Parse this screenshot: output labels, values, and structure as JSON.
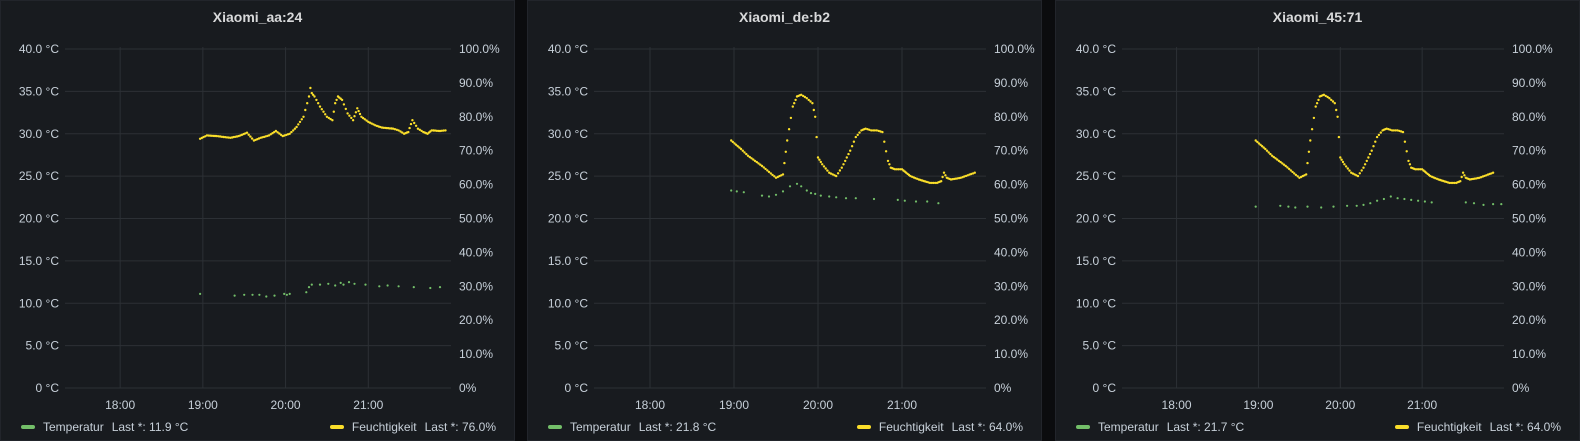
{
  "colors": {
    "temperature": "#73bf69",
    "humidity": "#fade2a",
    "grid": "#2c3035",
    "axis_text": "#c7d0d9"
  },
  "panels": [
    {
      "title": "Xiaomi_aa:24",
      "legend": [
        {
          "name": "Temperatur",
          "last": "Last *: 11.9 °C",
          "color": "#73bf69"
        },
        {
          "name": "Feuchtigkeit",
          "last": "Last *: 76.0%",
          "color": "#fade2a"
        }
      ]
    },
    {
      "title": "Xiaomi_de:b2",
      "legend": [
        {
          "name": "Temperatur",
          "last": "Last *: 21.8 °C",
          "color": "#73bf69"
        },
        {
          "name": "Feuchtigkeit",
          "last": "Last *: 64.0%",
          "color": "#fade2a"
        }
      ]
    },
    {
      "title": "Xiaomi_45:71",
      "legend": [
        {
          "name": "Temperatur",
          "last": "Last *: 21.7 °C",
          "color": "#73bf69"
        },
        {
          "name": "Feuchtigkeit",
          "last": "Last *: 64.0%",
          "color": "#fade2a"
        }
      ]
    }
  ],
  "chart_data": [
    {
      "type": "scatter",
      "title": "Xiaomi_aa:24",
      "x_ticks": [
        "18:00",
        "19:00",
        "20:00",
        "21:00"
      ],
      "y_left": {
        "ticks": [
          "0 °C",
          "5.0 °C",
          "10.0 °C",
          "15.0 °C",
          "20.0 °C",
          "25.0 °C",
          "30.0 °C",
          "35.0 °C",
          "40.0 °C"
        ],
        "range": [
          0,
          40
        ],
        "unit": "°C"
      },
      "y_right": {
        "ticks": [
          "0%",
          "10.0%",
          "20.0%",
          "30.0%",
          "40.0%",
          "50.0%",
          "60.0%",
          "70.0%",
          "80.0%",
          "90.0%",
          "100.0%"
        ],
        "range": [
          0,
          100
        ],
        "unit": "%"
      },
      "x_range": [
        "17:20",
        "22:00"
      ],
      "grid": true,
      "legend_position": "bottom",
      "series": [
        {
          "name": "Temperatur",
          "axis": "left",
          "x": [
            "18:58",
            "19:23",
            "19:30",
            "19:36",
            "19:41",
            "19:46",
            "19:52",
            "19:59",
            "20:01",
            "20:03",
            "20:15",
            "20:17",
            "20:19",
            "20:25",
            "20:31",
            "20:36",
            "20:40",
            "20:42",
            "20:46",
            "20:50",
            "20:58",
            "21:08",
            "21:14",
            "21:22",
            "21:33",
            "21:45",
            "21:52"
          ],
          "y": [
            11.1,
            10.9,
            11.0,
            11.0,
            11.0,
            10.8,
            10.9,
            11.1,
            11.0,
            11.1,
            11.3,
            11.9,
            12.2,
            12.2,
            12.3,
            12.1,
            12.4,
            12.2,
            12.5,
            12.3,
            12.2,
            12.0,
            12.1,
            12.0,
            11.9,
            11.8,
            11.9
          ]
        },
        {
          "name": "Feuchtigkeit",
          "axis": "right",
          "x": [
            "18:58",
            "19:03",
            "19:10",
            "19:20",
            "19:26",
            "19:32",
            "19:37",
            "19:42",
            "19:48",
            "19:53",
            "19:58",
            "20:03",
            "20:08",
            "20:13",
            "20:17",
            "20:18",
            "20:19",
            "20:21",
            "20:25",
            "20:30",
            "20:34",
            "20:36",
            "20:38",
            "20:41",
            "20:45",
            "20:49",
            "20:52",
            "20:55",
            "21:00",
            "21:05",
            "21:10",
            "21:18",
            "21:22",
            "21:26",
            "21:29",
            "21:32",
            "21:36",
            "21:40",
            "21:43",
            "21:46",
            "21:52",
            "21:56"
          ],
          "y": [
            73.5,
            74.5,
            74.3,
            73.8,
            74.3,
            75.3,
            73.0,
            73.8,
            74.5,
            75.8,
            74.3,
            75.0,
            77.0,
            80.0,
            86.0,
            88.5,
            87.0,
            86.0,
            83.0,
            80.0,
            79.0,
            84.0,
            86.0,
            85.0,
            81.0,
            79.0,
            82.5,
            80.0,
            78.5,
            77.5,
            76.8,
            76.5,
            76.0,
            75.0,
            75.5,
            79.0,
            76.5,
            75.5,
            75.0,
            76.0,
            75.8,
            76.0
          ]
        }
      ]
    },
    {
      "type": "scatter",
      "title": "Xiaomi_de:b2",
      "x_ticks": [
        "18:00",
        "19:00",
        "20:00",
        "21:00"
      ],
      "y_left": {
        "ticks": [
          "0 °C",
          "5.0 °C",
          "10.0 °C",
          "15.0 °C",
          "20.0 °C",
          "25.0 °C",
          "30.0 °C",
          "35.0 °C",
          "40.0 °C"
        ],
        "range": [
          0,
          40
        ],
        "unit": "°C"
      },
      "y_right": {
        "ticks": [
          "0%",
          "10.0%",
          "20.0%",
          "30.0%",
          "40.0%",
          "50.0%",
          "60.0%",
          "70.0%",
          "80.0%",
          "90.0%",
          "100.0%"
        ],
        "range": [
          0,
          100
        ],
        "unit": "%"
      },
      "x_range": [
        "17:20",
        "22:00"
      ],
      "grid": true,
      "legend_position": "bottom",
      "series": [
        {
          "name": "Temperatur",
          "axis": "left",
          "x": [
            "18:58",
            "19:02",
            "19:07",
            "19:20",
            "19:25",
            "19:30",
            "19:35",
            "19:40",
            "19:45",
            "19:48",
            "19:52",
            "19:55",
            "19:58",
            "20:02",
            "20:08",
            "20:13",
            "20:20",
            "20:27",
            "20:40",
            "20:57",
            "21:02",
            "21:10",
            "21:18",
            "21:26"
          ],
          "y": [
            23.3,
            23.2,
            23.1,
            22.7,
            22.6,
            22.8,
            23.2,
            23.8,
            24.1,
            23.8,
            23.3,
            23.0,
            22.9,
            22.7,
            22.6,
            22.5,
            22.4,
            22.4,
            22.3,
            22.2,
            22.1,
            22.0,
            22.0,
            21.8
          ]
        },
        {
          "name": "Feuchtigkeit",
          "axis": "right",
          "x": [
            "18:58",
            "19:05",
            "19:10",
            "19:20",
            "19:30",
            "19:35",
            "19:38",
            "19:42",
            "19:45",
            "19:48",
            "19:52",
            "19:56",
            "19:58",
            "20:00",
            "20:03",
            "20:08",
            "20:13",
            "20:17",
            "20:23",
            "20:27",
            "20:31",
            "20:34",
            "20:38",
            "20:42",
            "20:46",
            "20:50",
            "20:52",
            "20:55",
            "21:00",
            "21:03",
            "21:06",
            "21:12",
            "21:20",
            "21:25",
            "21:28",
            "21:30",
            "21:32",
            "21:35",
            "21:42",
            "21:52"
          ],
          "y": [
            73.0,
            70.5,
            68.5,
            65.5,
            62.0,
            63.0,
            73.0,
            83.0,
            86.0,
            86.5,
            85.5,
            84.0,
            80.0,
            68.0,
            66.0,
            63.5,
            62.5,
            65.0,
            70.0,
            74.0,
            76.0,
            76.5,
            76.0,
            76.0,
            75.5,
            67.0,
            65.0,
            64.5,
            64.5,
            63.5,
            62.5,
            61.5,
            60.5,
            60.5,
            61.0,
            63.5,
            62.0,
            61.5,
            62.0,
            63.5
          ]
        }
      ]
    },
    {
      "type": "scatter",
      "title": "Xiaomi_45:71",
      "x_ticks": [
        "18:00",
        "19:00",
        "20:00",
        "21:00"
      ],
      "y_left": {
        "ticks": [
          "0 °C",
          "5.0 °C",
          "10.0 °C",
          "15.0 °C",
          "20.0 °C",
          "25.0 °C",
          "30.0 °C",
          "35.0 °C",
          "40.0 °C"
        ],
        "range": [
          0,
          40
        ],
        "unit": "°C"
      },
      "y_right": {
        "ticks": [
          "0%",
          "10.0%",
          "20.0%",
          "30.0%",
          "40.0%",
          "50.0%",
          "60.0%",
          "70.0%",
          "80.0%",
          "90.0%",
          "100.0%"
        ],
        "range": [
          0,
          100
        ],
        "unit": "%"
      },
      "x_range": [
        "17:20",
        "22:00"
      ],
      "grid": true,
      "legend_position": "bottom",
      "series": [
        {
          "name": "Temperatur",
          "axis": "left",
          "x": [
            "18:58",
            "19:16",
            "19:22",
            "19:27",
            "19:36",
            "19:46",
            "19:55",
            "20:05",
            "20:12",
            "20:17",
            "20:22",
            "20:27",
            "20:32",
            "20:37",
            "20:42",
            "20:47",
            "20:52",
            "20:57",
            "21:02",
            "21:07",
            "21:32",
            "21:38",
            "21:45",
            "21:52",
            "21:58"
          ],
          "y": [
            21.4,
            21.5,
            21.4,
            21.3,
            21.4,
            21.3,
            21.4,
            21.5,
            21.5,
            21.6,
            21.8,
            22.1,
            22.3,
            22.6,
            22.4,
            22.3,
            22.2,
            22.1,
            22.0,
            21.9,
            21.9,
            21.8,
            21.6,
            21.7,
            21.7
          ]
        },
        {
          "name": "Feuchtigkeit",
          "axis": "right",
          "x": [
            "18:58",
            "19:05",
            "19:10",
            "19:20",
            "19:30",
            "19:35",
            "19:38",
            "19:42",
            "19:45",
            "19:48",
            "19:52",
            "19:56",
            "19:58",
            "20:00",
            "20:03",
            "20:08",
            "20:13",
            "20:17",
            "20:23",
            "20:27",
            "20:31",
            "20:34",
            "20:38",
            "20:42",
            "20:46",
            "20:50",
            "20:52",
            "20:55",
            "21:00",
            "21:03",
            "21:06",
            "21:12",
            "21:20",
            "21:25",
            "21:28",
            "21:30",
            "21:32",
            "21:35",
            "21:42",
            "21:52"
          ],
          "y": [
            73.0,
            70.5,
            68.5,
            65.5,
            62.0,
            63.0,
            73.0,
            83.0,
            86.0,
            86.5,
            85.5,
            84.0,
            80.0,
            68.0,
            66.0,
            63.5,
            62.5,
            65.0,
            70.0,
            74.0,
            76.0,
            76.5,
            76.0,
            76.0,
            75.5,
            67.0,
            65.0,
            64.5,
            64.5,
            63.5,
            62.5,
            61.5,
            60.5,
            60.5,
            61.0,
            63.5,
            62.0,
            61.5,
            62.0,
            63.5
          ]
        }
      ]
    }
  ]
}
